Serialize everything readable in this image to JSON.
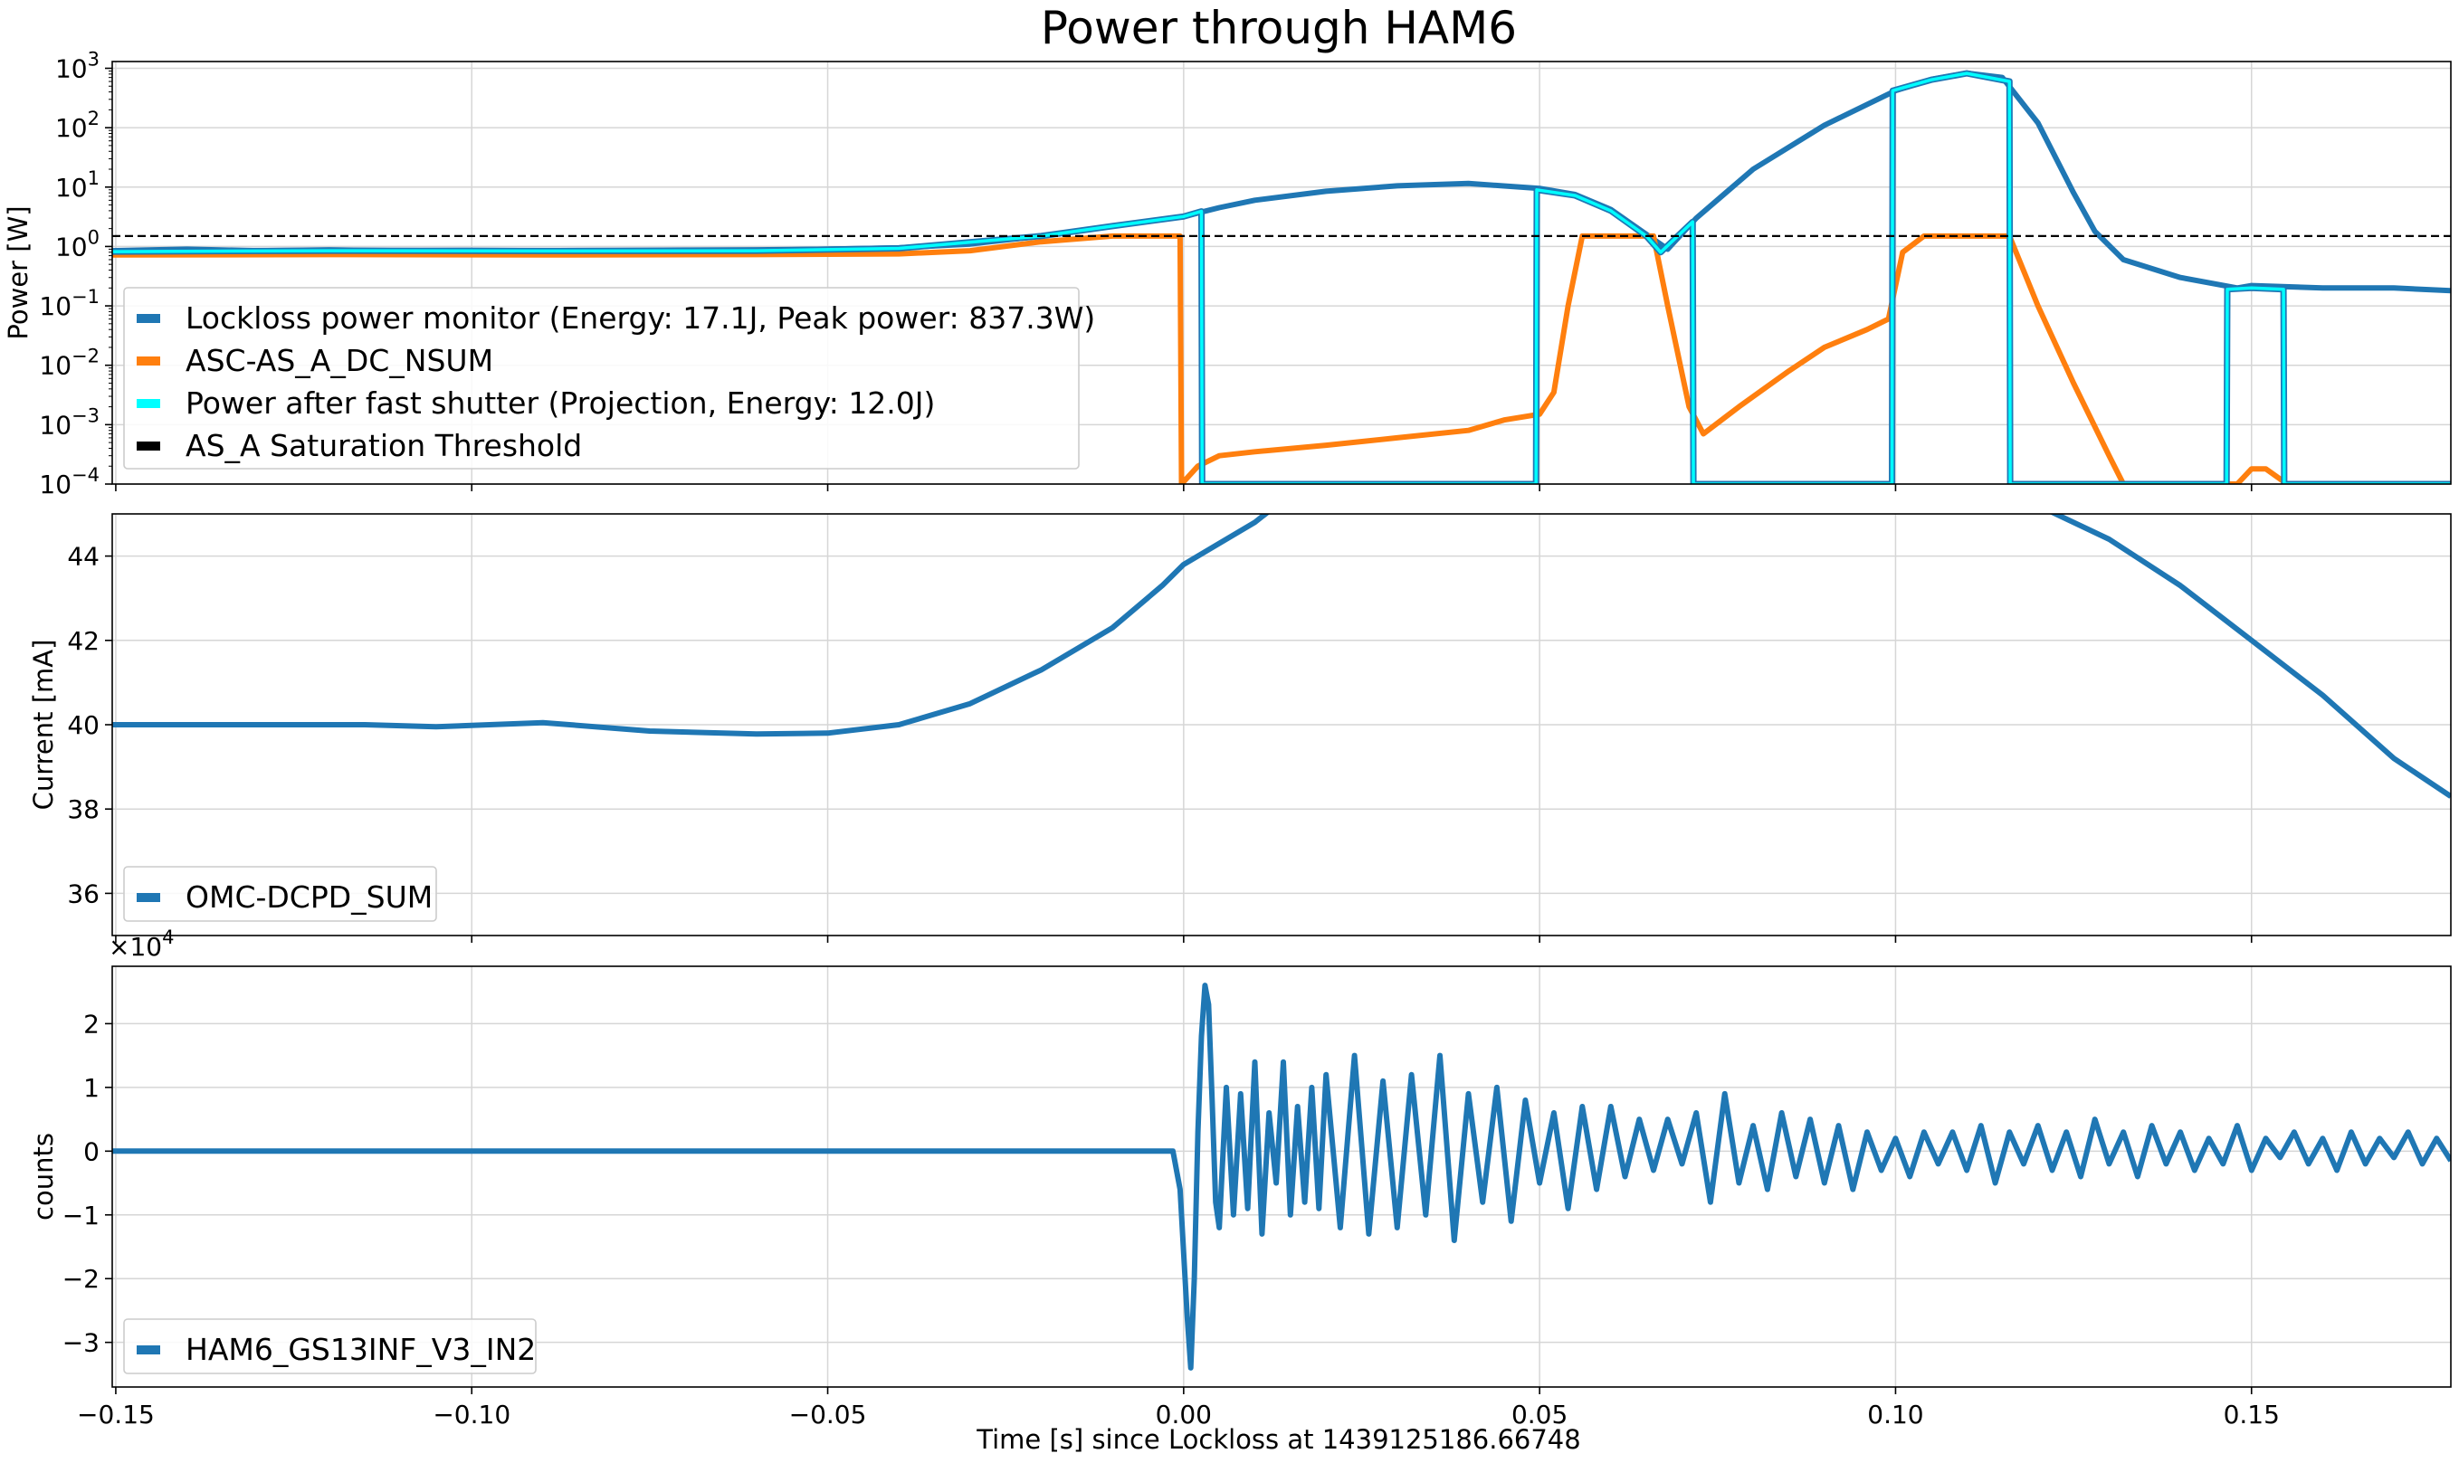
{
  "figure": {
    "title": "Power through HAM6",
    "xlabel": "Time [s] since Lockloss at 1439125186.66748",
    "xlim": [
      -0.1505,
      0.178
    ],
    "xticks": [
      -0.15,
      -0.1,
      -0.05,
      0.0,
      0.05,
      0.1,
      0.15
    ],
    "xtick_labels": [
      "−0.15",
      "−0.10",
      "−0.05",
      "0.00",
      "0.05",
      "0.10",
      "0.15"
    ]
  },
  "chart_data": [
    {
      "type": "line",
      "title": "",
      "ylabel": "Power [W]",
      "yscale": "log",
      "ylim": [
        0.0001,
        1300
      ],
      "yticks": [
        0.0001,
        0.001,
        0.01,
        0.1,
        1,
        10,
        100,
        1000
      ],
      "ytick_labels": [
        {
          "base": "10",
          "exp": "−4"
        },
        {
          "base": "10",
          "exp": "−3"
        },
        {
          "base": "10",
          "exp": "−2"
        },
        {
          "base": "10",
          "exp": "−1"
        },
        {
          "base": "10",
          "exp": "0"
        },
        {
          "base": "10",
          "exp": "1"
        },
        {
          "base": "10",
          "exp": "2"
        },
        {
          "base": "10",
          "exp": "3"
        }
      ],
      "grid": true,
      "legend_position": "center-left",
      "series": [
        {
          "name": "Lockloss power monitor (Energy: 17.1J, Peak power: 837.3W)",
          "color": "#1f77b4",
          "x": [
            -0.1505,
            -0.14,
            -0.13,
            -0.12,
            -0.11,
            -0.1,
            -0.09,
            -0.08,
            -0.07,
            -0.06,
            -0.05,
            -0.04,
            -0.03,
            -0.02,
            -0.01,
            0.0,
            0.005,
            0.01,
            0.02,
            0.03,
            0.04,
            0.05,
            0.055,
            0.06,
            0.065,
            0.068,
            0.072,
            0.08,
            0.09,
            0.1,
            0.105,
            0.11,
            0.115,
            0.12,
            0.125,
            0.128,
            0.132,
            0.14,
            0.148,
            0.15,
            0.16,
            0.17,
            0.178
          ],
          "y": [
            0.85,
            0.9,
            0.85,
            0.88,
            0.85,
            0.86,
            0.85,
            0.86,
            0.87,
            0.88,
            0.9,
            0.95,
            1.1,
            1.5,
            2.2,
            3.2,
            4.5,
            6.0,
            8.5,
            10.5,
            11.5,
            9.5,
            7.5,
            4.2,
            1.6,
            0.9,
            3.0,
            20,
            110,
            420,
            650,
            830,
            700,
            120,
            8,
            1.8,
            0.6,
            0.3,
            0.2,
            0.22,
            0.2,
            0.2,
            0.18
          ]
        },
        {
          "name": "ASC-AS_A_DC_NSUM",
          "color": "#ff7f0e",
          "x": [
            -0.1505,
            -0.12,
            -0.09,
            -0.06,
            -0.04,
            -0.03,
            -0.02,
            -0.01,
            -0.0005,
            -0.0003,
            0.002,
            0.005,
            0.01,
            0.02,
            0.03,
            0.04,
            0.045,
            0.05,
            0.052,
            0.054,
            0.056,
            0.058,
            0.062,
            0.066,
            0.068,
            0.071,
            0.073,
            0.078,
            0.085,
            0.09,
            0.096,
            0.099,
            0.101,
            0.104,
            0.113,
            0.116,
            0.12,
            0.125,
            0.13,
            0.132,
            0.148,
            0.15,
            0.152,
            0.155
          ],
          "y": [
            0.72,
            0.73,
            0.72,
            0.73,
            0.75,
            0.85,
            1.2,
            1.5,
            1.5,
            0.0001,
            0.0002,
            0.0003,
            0.00035,
            0.00045,
            0.0006,
            0.0008,
            0.0012,
            0.0015,
            0.0035,
            0.1,
            1.5,
            1.5,
            1.5,
            1.5,
            0.1,
            0.002,
            0.0007,
            0.002,
            0.008,
            0.02,
            0.04,
            0.06,
            0.8,
            1.5,
            1.5,
            1.5,
            0.1,
            0.005,
            0.0003,
            0.0001,
            0.0001,
            0.00018,
            0.00018,
            0.0001
          ]
        },
        {
          "name": "Power after fast shutter (Projection, Energy: 12.0J)",
          "color": "#00ffff",
          "x": [
            -0.1505,
            -0.12,
            -0.09,
            -0.06,
            -0.04,
            -0.02,
            -0.01,
            0.0,
            0.0025,
            0.0026,
            0.0495,
            0.0496,
            0.055,
            0.06,
            0.065,
            0.067,
            0.0715,
            0.0716,
            0.0995,
            0.0996,
            0.105,
            0.11,
            0.116,
            0.1161,
            0.1465,
            0.1466,
            0.15,
            0.1545,
            0.1546,
            0.16,
            0.17,
            0.178
          ],
          "y": [
            0.82,
            0.85,
            0.84,
            0.85,
            0.93,
            1.5,
            2.2,
            3.2,
            3.9,
            0.0001,
            0.0001,
            9.0,
            7.2,
            4.0,
            1.5,
            0.8,
            2.6,
            0.0001,
            0.0001,
            420,
            640,
            820,
            600,
            0.0001,
            0.0001,
            0.19,
            0.2,
            0.19,
            0.0001,
            0.0001,
            0.0001,
            0.0001
          ]
        },
        {
          "name": "AS_A Saturation Threshold",
          "color": "#000000",
          "x": [
            -0.1505,
            0.178
          ],
          "y": [
            1.5,
            1.5
          ]
        }
      ]
    },
    {
      "type": "line",
      "title": "",
      "ylabel": "Current [mA]",
      "ylim": [
        35,
        45
      ],
      "yticks": [
        36,
        38,
        40,
        42,
        44
      ],
      "ytick_labels": [
        "36",
        "38",
        "40",
        "42",
        "44"
      ],
      "grid": true,
      "legend_position": "lower-left",
      "series": [
        {
          "name": "OMC-DCPD_SUM",
          "color": "#1f77b4",
          "x": [
            -0.1505,
            -0.13,
            -0.115,
            -0.105,
            -0.09,
            -0.075,
            -0.06,
            -0.05,
            -0.04,
            -0.03,
            -0.02,
            -0.01,
            -0.003,
            0.0,
            0.005,
            0.01,
            0.013,
            0.05,
            0.08,
            0.12,
            0.13,
            0.14,
            0.15,
            0.16,
            0.17,
            0.178
          ],
          "y": [
            40.0,
            40.0,
            40.0,
            39.95,
            40.05,
            39.85,
            39.78,
            39.8,
            40.0,
            40.5,
            41.3,
            42.3,
            43.3,
            43.8,
            44.3,
            44.8,
            45.2,
            47.5,
            47.8,
            45.2,
            44.4,
            43.3,
            42.0,
            40.7,
            39.2,
            38.3
          ]
        }
      ]
    },
    {
      "type": "line",
      "title": "",
      "ylabel": "counts",
      "offset_text": {
        "base": "×10",
        "exp": "4"
      },
      "ylim": [
        -3.7,
        2.9
      ],
      "yticks": [
        -3,
        -2,
        -1,
        0,
        1,
        2
      ],
      "ytick_labels": [
        "−3",
        "−2",
        "−1",
        "0",
        "1",
        "2"
      ],
      "grid": true,
      "legend_position": "lower-left",
      "series": [
        {
          "name": "HAM6_GS13INF_V3_IN2",
          "color": "#1f77b4",
          "x": [
            -0.1505,
            -0.0015,
            -0.0005,
            0.0005,
            0.001,
            0.0015,
            0.002,
            0.0025,
            0.003,
            0.0035,
            0.004,
            0.0045,
            0.005,
            0.006,
            0.007,
            0.008,
            0.009,
            0.01,
            0.011,
            0.012,
            0.013,
            0.014,
            0.015,
            0.016,
            0.017,
            0.018,
            0.019,
            0.02,
            0.022,
            0.024,
            0.026,
            0.028,
            0.03,
            0.032,
            0.034,
            0.036,
            0.038,
            0.04,
            0.042,
            0.044,
            0.046,
            0.048,
            0.05,
            0.052,
            0.054,
            0.056,
            0.058,
            0.06,
            0.062,
            0.064,
            0.066,
            0.068,
            0.07,
            0.072,
            0.074,
            0.076,
            0.078,
            0.08,
            0.082,
            0.084,
            0.086,
            0.088,
            0.09,
            0.092,
            0.094,
            0.096,
            0.098,
            0.1,
            0.102,
            0.104,
            0.106,
            0.108,
            0.11,
            0.112,
            0.114,
            0.116,
            0.118,
            0.12,
            0.122,
            0.124,
            0.126,
            0.128,
            0.13,
            0.132,
            0.134,
            0.136,
            0.138,
            0.14,
            0.142,
            0.144,
            0.146,
            0.148,
            0.15,
            0.152,
            0.154,
            0.156,
            0.158,
            0.16,
            0.162,
            0.164,
            0.166,
            0.168,
            0.17,
            0.172,
            0.174,
            0.176,
            0.178
          ],
          "y": [
            0,
            0,
            -0.6,
            -2.6,
            -3.4,
            -2.0,
            0.3,
            1.8,
            2.6,
            2.3,
            0.8,
            -0.8,
            -1.2,
            1.0,
            -1.0,
            0.9,
            -0.9,
            1.4,
            -1.3,
            0.6,
            -0.5,
            1.4,
            -1.0,
            0.7,
            -0.8,
            1.0,
            -0.9,
            1.2,
            -1.2,
            1.5,
            -1.3,
            1.1,
            -1.2,
            1.2,
            -1.0,
            1.5,
            -1.4,
            0.9,
            -0.8,
            1.0,
            -1.1,
            0.8,
            -0.5,
            0.6,
            -0.9,
            0.7,
            -0.6,
            0.7,
            -0.4,
            0.5,
            -0.3,
            0.5,
            -0.2,
            0.6,
            -0.8,
            0.9,
            -0.5,
            0.4,
            -0.6,
            0.6,
            -0.4,
            0.5,
            -0.5,
            0.4,
            -0.6,
            0.3,
            -0.3,
            0.2,
            -0.4,
            0.3,
            -0.2,
            0.3,
            -0.3,
            0.4,
            -0.5,
            0.3,
            -0.2,
            0.4,
            -0.3,
            0.3,
            -0.4,
            0.5,
            -0.2,
            0.3,
            -0.4,
            0.4,
            -0.2,
            0.3,
            -0.3,
            0.2,
            -0.2,
            0.4,
            -0.3,
            0.2,
            -0.1,
            0.3,
            -0.2,
            0.2,
            -0.3,
            0.3,
            -0.2,
            0.2,
            -0.1,
            0.3,
            -0.2,
            0.2,
            -0.15
          ]
        }
      ]
    }
  ]
}
